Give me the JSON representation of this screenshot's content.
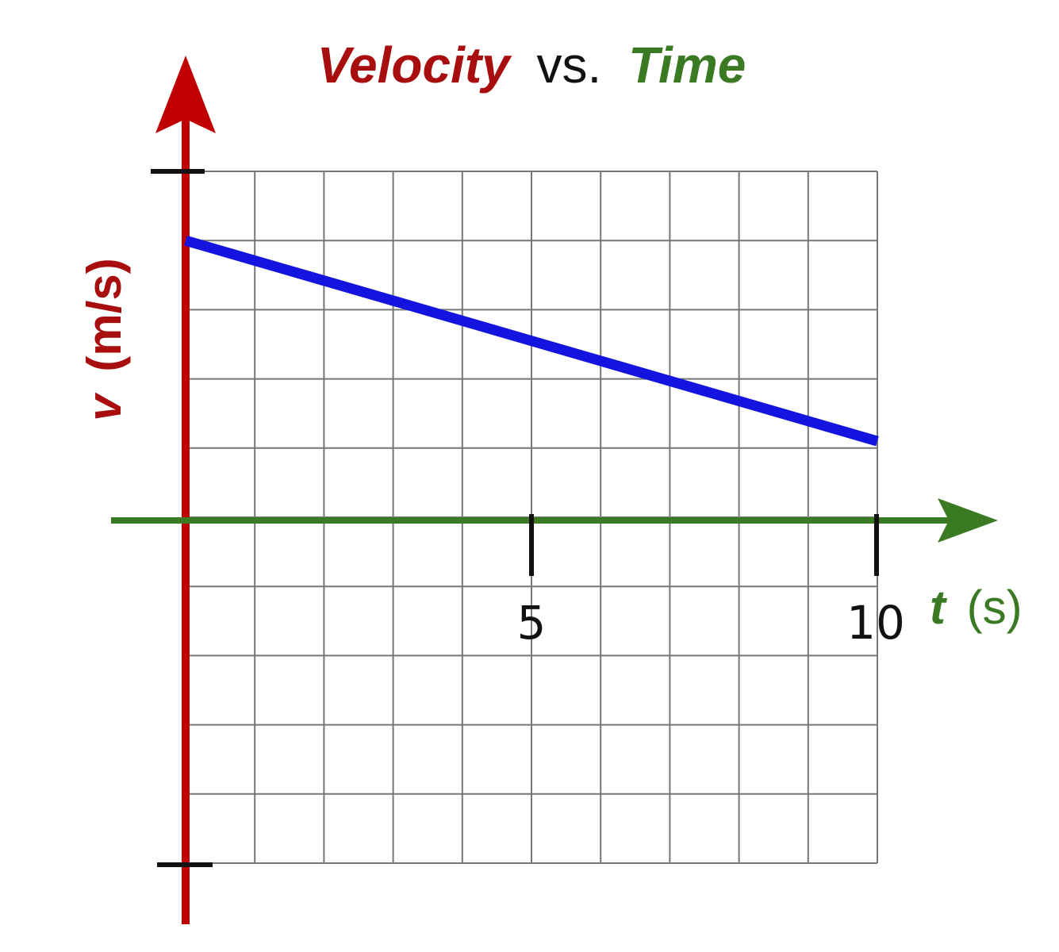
{
  "chart_data": {
    "type": "line",
    "title": {
      "part1": "Velocity",
      "part2": "vs.",
      "part3": "Time"
    },
    "xlabel": {
      "symbol": "t",
      "unit": "(s)"
    },
    "ylabel": {
      "symbol": "v",
      "unit": "(m/s)"
    },
    "x_tick_labels": [
      "5",
      "10"
    ],
    "xlim": [
      -1,
      10
    ],
    "ylim": [
      -5,
      5
    ],
    "grid": true,
    "series": [
      {
        "x": [
          0,
          10
        ],
        "y": [
          4,
          1.1
        ]
      }
    ],
    "colors": {
      "y_axis": "#c00000",
      "x_axis": "#3a7a22",
      "line": "#1414e0",
      "grid": "#777777",
      "title_part1": "#a80e0e",
      "title_part2": "#111111",
      "title_part3": "#3a7a22"
    }
  }
}
